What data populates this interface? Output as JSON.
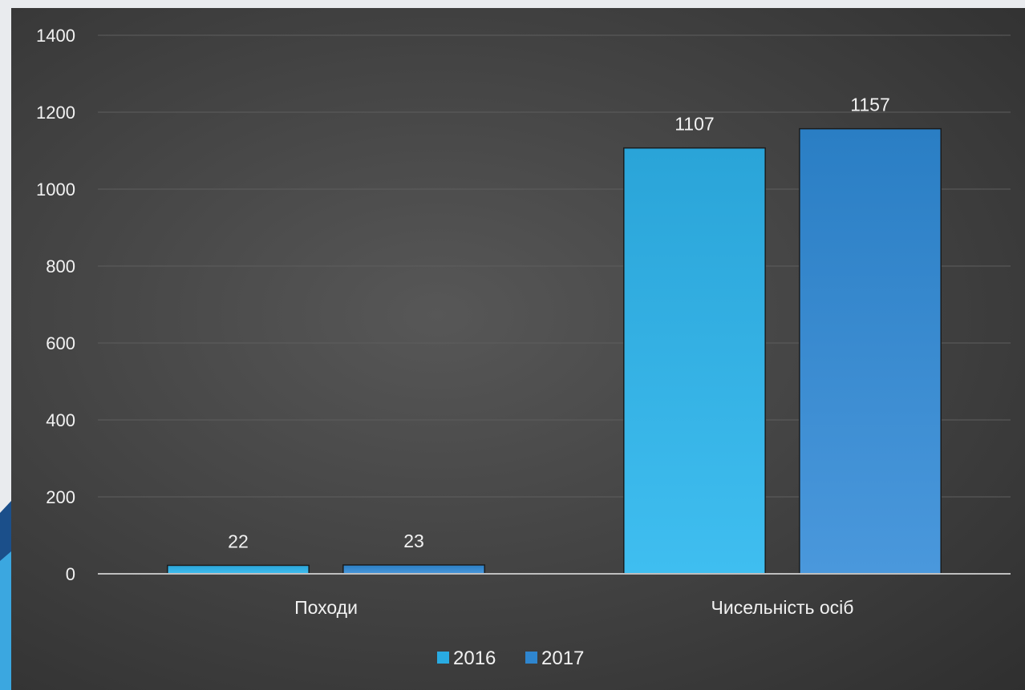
{
  "colors": {
    "series_2016": "#29abe2",
    "series_2017": "#2f86cf",
    "gridline": "#5e5e5e",
    "axis": "#bfbfbf",
    "text": "#f2f2f2"
  },
  "chart_data": {
    "type": "bar",
    "categories": [
      "Походи",
      "Чисельність осіб"
    ],
    "series": [
      {
        "name": "2016",
        "values": [
          22,
          1107
        ]
      },
      {
        "name": "2017",
        "values": [
          23,
          1157
        ]
      }
    ],
    "y_ticks": [
      "0",
      "200",
      "400",
      "600",
      "800",
      "1000",
      "1200",
      "1400"
    ],
    "ylim": [
      0,
      1400
    ],
    "grid": true,
    "legend": "bottom-center",
    "data_labels": true
  }
}
